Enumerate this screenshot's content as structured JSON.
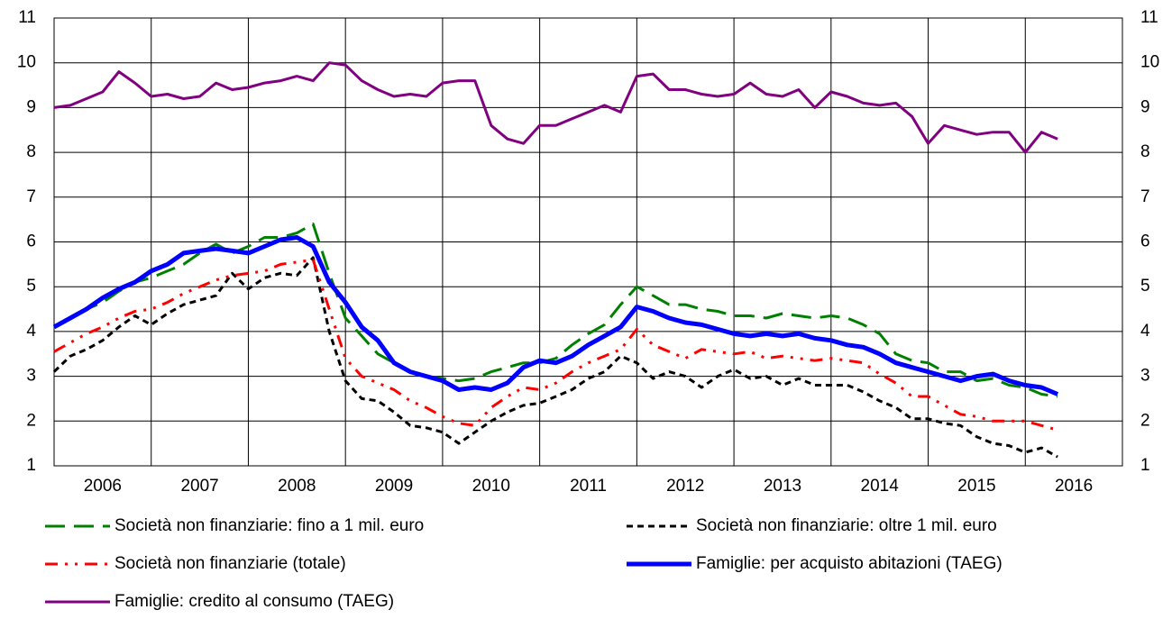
{
  "chart_data": {
    "type": "line",
    "x": [
      2006,
      2006.167,
      2006.333,
      2006.5,
      2006.667,
      2006.833,
      2007,
      2007.167,
      2007.333,
      2007.5,
      2007.667,
      2007.833,
      2008,
      2008.167,
      2008.333,
      2008.5,
      2008.667,
      2008.833,
      2009,
      2009.167,
      2009.333,
      2009.5,
      2009.667,
      2009.833,
      2010,
      2010.167,
      2010.333,
      2010.5,
      2010.667,
      2010.833,
      2011,
      2011.167,
      2011.333,
      2011.5,
      2011.667,
      2011.833,
      2012,
      2012.167,
      2012.333,
      2012.5,
      2012.667,
      2012.833,
      2013,
      2013.167,
      2013.333,
      2013.5,
      2013.667,
      2013.833,
      2014,
      2014.167,
      2014.333,
      2014.5,
      2014.667,
      2014.833,
      2015,
      2015.167,
      2015.333,
      2015.5,
      2015.667,
      2015.833,
      2016,
      2016.167,
      2016.333
    ],
    "series": [
      {
        "name": "Società non finanziarie: fino a 1 mil. euro",
        "color": "#008000",
        "dash": "long",
        "width": 3,
        "values": [
          4.1,
          4.3,
          4.5,
          4.65,
          4.9,
          5.1,
          5.2,
          5.35,
          5.5,
          5.75,
          5.95,
          5.75,
          5.9,
          6.1,
          6.1,
          6.2,
          6.4,
          5.3,
          4.3,
          3.9,
          3.5,
          3.3,
          3.1,
          3.0,
          2.95,
          2.9,
          2.95,
          3.1,
          3.2,
          3.3,
          3.3,
          3.4,
          3.7,
          3.95,
          4.15,
          4.6,
          5.0,
          4.8,
          4.6,
          4.6,
          4.5,
          4.45,
          4.35,
          4.35,
          4.3,
          4.4,
          4.35,
          4.3,
          4.35,
          4.3,
          4.15,
          3.95,
          3.5,
          3.35,
          3.3,
          3.1,
          3.1,
          2.9,
          2.95,
          2.8,
          2.75,
          2.6,
          2.55
        ]
      },
      {
        "name": "Società non finanziarie: oltre 1 mil. euro",
        "color": "#000000",
        "dash": "short",
        "width": 3,
        "values": [
          3.1,
          3.45,
          3.6,
          3.8,
          4.1,
          4.35,
          4.15,
          4.4,
          4.6,
          4.7,
          4.8,
          5.3,
          4.95,
          5.2,
          5.3,
          5.25,
          5.65,
          4.0,
          2.9,
          2.5,
          2.45,
          2.2,
          1.9,
          1.85,
          1.75,
          1.5,
          1.75,
          2.0,
          2.2,
          2.35,
          2.4,
          2.55,
          2.7,
          2.95,
          3.1,
          3.45,
          3.3,
          2.95,
          3.1,
          3.0,
          2.75,
          3.0,
          3.15,
          2.95,
          3.0,
          2.8,
          2.95,
          2.8,
          2.8,
          2.8,
          2.65,
          2.45,
          2.3,
          2.05,
          2.05,
          1.95,
          1.9,
          1.65,
          1.5,
          1.45,
          1.3,
          1.4,
          1.2
        ]
      },
      {
        "name": "Società non finanziarie (totale)",
        "color": "#ff0000",
        "dash": "dashdotdot",
        "width": 3,
        "values": [
          3.55,
          3.75,
          3.95,
          4.1,
          4.3,
          4.45,
          4.5,
          4.65,
          4.85,
          5.0,
          5.15,
          5.25,
          5.3,
          5.35,
          5.5,
          5.55,
          5.6,
          4.5,
          3.4,
          3.0,
          2.85,
          2.7,
          2.45,
          2.3,
          2.1,
          1.95,
          1.9,
          2.3,
          2.55,
          2.75,
          2.7,
          2.85,
          3.1,
          3.3,
          3.45,
          3.6,
          4.05,
          3.7,
          3.55,
          3.4,
          3.6,
          3.55,
          3.5,
          3.55,
          3.4,
          3.45,
          3.4,
          3.35,
          3.4,
          3.35,
          3.3,
          3.05,
          2.85,
          2.55,
          2.55,
          2.35,
          2.15,
          2.1,
          2.0,
          2.0,
          2.0,
          1.9,
          1.8
        ]
      },
      {
        "name": "Famiglie: per acquisto abitazioni (TAEG)",
        "color": "#0000ff",
        "dash": "solid",
        "width": 5,
        "values": [
          4.1,
          4.3,
          4.5,
          4.75,
          4.95,
          5.1,
          5.35,
          5.5,
          5.75,
          5.8,
          5.85,
          5.8,
          5.75,
          5.9,
          6.05,
          6.1,
          5.9,
          5.1,
          4.65,
          4.1,
          3.8,
          3.3,
          3.1,
          3.0,
          2.9,
          2.7,
          2.75,
          2.7,
          2.85,
          3.2,
          3.35,
          3.3,
          3.45,
          3.7,
          3.9,
          4.1,
          4.55,
          4.45,
          4.3,
          4.2,
          4.15,
          4.05,
          3.95,
          3.9,
          3.95,
          3.9,
          3.95,
          3.85,
          3.8,
          3.7,
          3.65,
          3.5,
          3.3,
          3.2,
          3.1,
          3.0,
          2.9,
          3.0,
          3.05,
          2.9,
          2.8,
          2.75,
          2.6
        ]
      },
      {
        "name": "Famiglie: credito al consumo (TAEG)",
        "color": "#800080",
        "dash": "solid",
        "width": 3,
        "values": [
          9.0,
          9.05,
          9.2,
          9.35,
          9.8,
          9.55,
          9.25,
          9.3,
          9.2,
          9.25,
          9.55,
          9.4,
          9.45,
          9.55,
          9.6,
          9.7,
          9.6,
          10.0,
          9.95,
          9.6,
          9.4,
          9.25,
          9.3,
          9.25,
          9.55,
          9.6,
          9.6,
          8.6,
          8.3,
          8.2,
          8.6,
          8.6,
          8.75,
          8.9,
          9.05,
          8.9,
          9.7,
          9.75,
          9.4,
          9.4,
          9.3,
          9.25,
          9.3,
          9.55,
          9.3,
          9.25,
          9.4,
          9.0,
          9.35,
          9.25,
          9.1,
          9.05,
          9.1,
          8.8,
          8.2,
          8.6,
          8.5,
          8.4,
          8.45,
          8.45,
          8.0,
          8.45,
          8.3
        ]
      }
    ],
    "xlim": [
      2006,
      2017
    ],
    "xticks": [
      {
        "value": 2006.5,
        "label": "2006"
      },
      {
        "value": 2007.5,
        "label": "2007"
      },
      {
        "value": 2008.5,
        "label": "2008"
      },
      {
        "value": 2009.5,
        "label": "2009"
      },
      {
        "value": 2010.5,
        "label": "2010"
      },
      {
        "value": 2011.5,
        "label": "2011"
      },
      {
        "value": 2012.5,
        "label": "2012"
      },
      {
        "value": 2013.5,
        "label": "2013"
      },
      {
        "value": 2014.5,
        "label": "2014"
      },
      {
        "value": 2015.5,
        "label": "2015"
      },
      {
        "value": 2016.5,
        "label": "2016"
      }
    ],
    "xgrid": [
      2007,
      2008,
      2009,
      2010,
      2011,
      2012,
      2013,
      2014,
      2015,
      2016
    ],
    "ylim": [
      1,
      11
    ],
    "yticks": [
      1,
      2,
      3,
      4,
      5,
      6,
      7,
      8,
      9,
      10,
      11
    ],
    "grid": true,
    "right_axis": true,
    "legend": "bottom"
  }
}
